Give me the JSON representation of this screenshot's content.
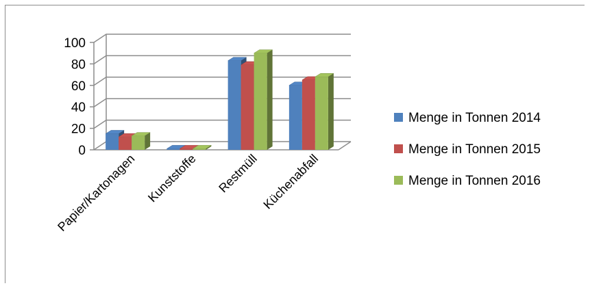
{
  "chart_data": {
    "type": "bar",
    "style": "3d-clustered-column",
    "categories": [
      "Papier/Kartonagen",
      "Kunststoffe",
      "Restmüll",
      "Küchenabfall"
    ],
    "series": [
      {
        "name": "Menge in Tonnen 2014",
        "color": "#4f81bd",
        "values": [
          15,
          1,
          83,
          60
        ]
      },
      {
        "name": "Menge in Tonnen 2015",
        "color": "#c0504d",
        "values": [
          12,
          1,
          79,
          65
        ]
      },
      {
        "name": "Menge in Tonnen 2016",
        "color": "#9bbb59",
        "values": [
          13,
          1,
          90,
          68
        ]
      }
    ],
    "yticks": [
      "0",
      "20",
      "40",
      "60",
      "80",
      "100"
    ],
    "ylim": [
      0,
      100
    ],
    "grid": true,
    "legend_position": "right"
  }
}
